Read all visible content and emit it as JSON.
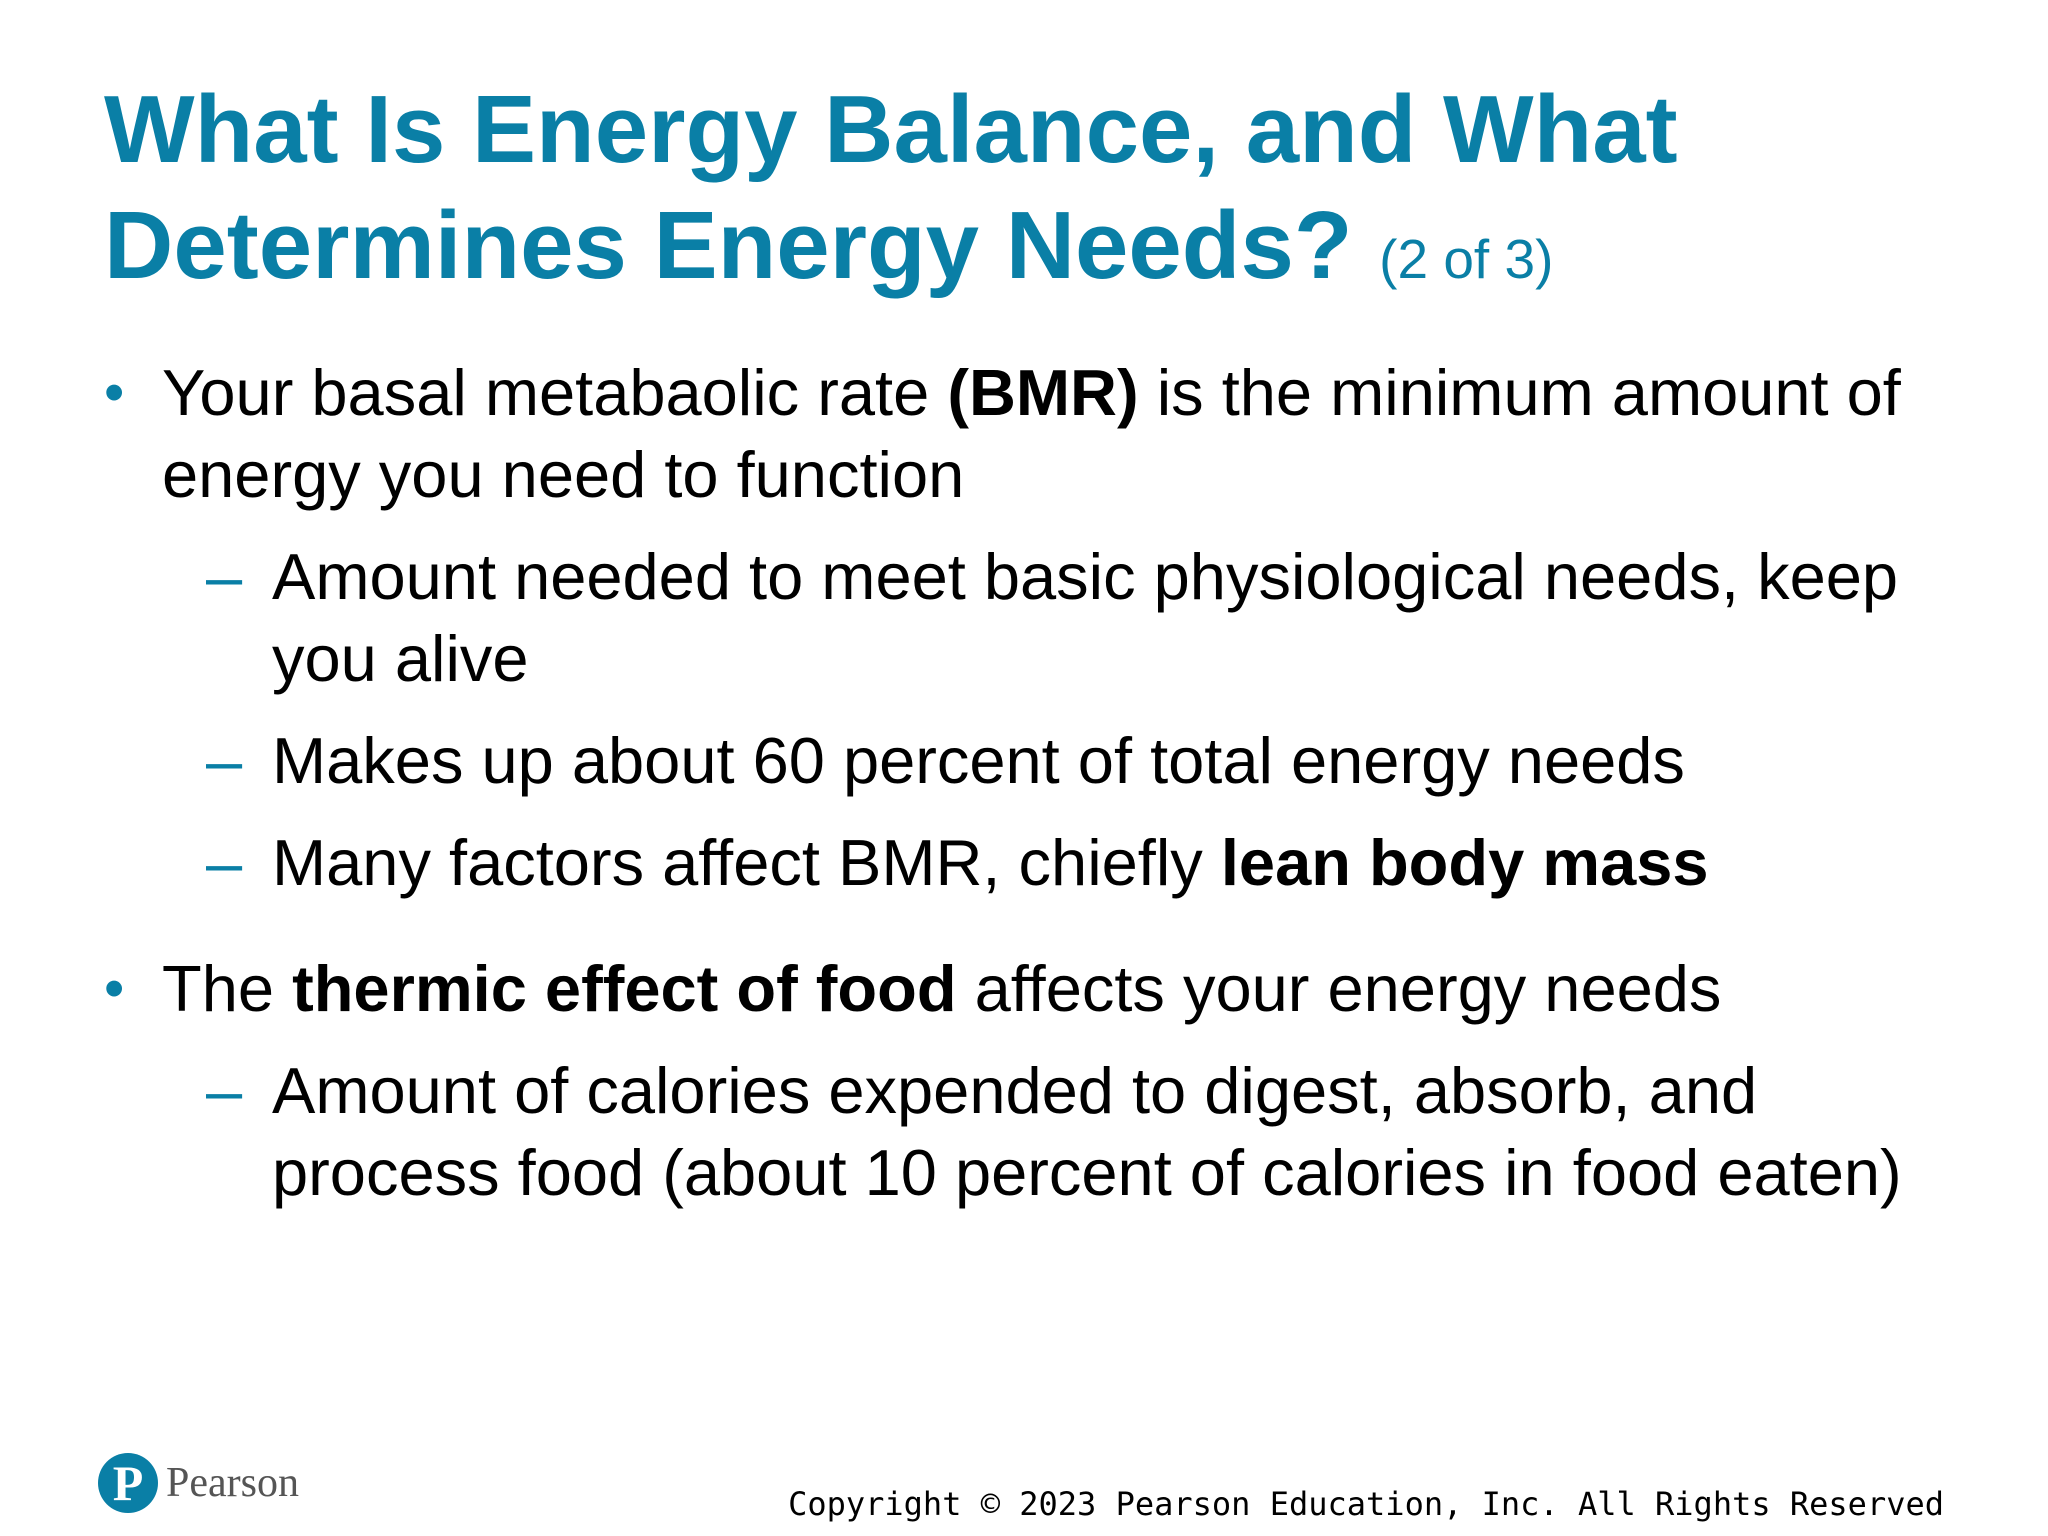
{
  "slide": {
    "title": "What Is Energy Balance, and What Determines Energy Needs?",
    "title_suffix": "(2 of 3)",
    "bullets": [
      {
        "marker": "•",
        "parts": [
          "Your basal metabaolic rate ",
          "(BMR)",
          " is the minimum amount of energy you need to function"
        ],
        "subitems": [
          {
            "marker": "–",
            "text": "Amount needed to meet basic physiological needs, keep you alive"
          },
          {
            "marker": "–",
            "text": "Makes up about 60 percent of total energy needs"
          },
          {
            "marker": "–",
            "parts": [
              "Many factors affect BMR, chiefly ",
              "lean body mass"
            ]
          }
        ]
      },
      {
        "marker": "•",
        "parts": [
          "The ",
          "thermic effect of food",
          " affects your energy needs"
        ],
        "subitems": [
          {
            "marker": "–",
            "text": "Amount of calories expended to digest, absorb, and process food (about 10 percent of calories in food eaten)"
          }
        ]
      }
    ]
  },
  "footer": {
    "logo_letter": "P",
    "logo_text": "Pearson",
    "copyright": "Copyright © 2023 Pearson Education, Inc. All Rights Reserved"
  },
  "colors": {
    "accent": "#0a7fa6",
    "text": "#000000",
    "background": "#ffffff"
  }
}
